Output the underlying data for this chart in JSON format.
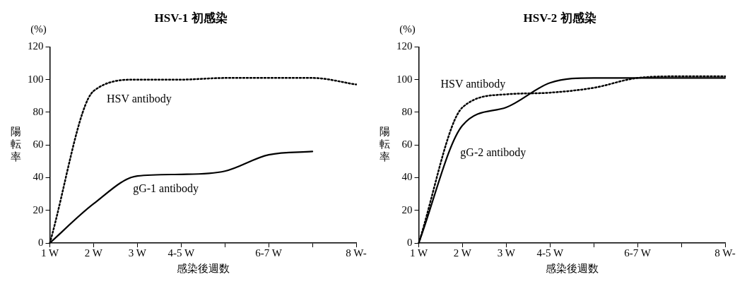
{
  "chart_data": [
    {
      "type": "line",
      "title": "HSV-1 初感染",
      "xlabel": "感染後週数",
      "ylabel": "陽転率",
      "annotations": [
        "(%)"
      ],
      "categories": [
        "1 W",
        "2 W",
        "3 W",
        "4-5 W",
        null,
        "6-7 W",
        null,
        "8 W-"
      ],
      "ylim": [
        0,
        120
      ],
      "yticks": [
        0,
        20,
        40,
        60,
        80,
        100,
        120
      ],
      "grid": false,
      "legend": false,
      "marker": "none",
      "series": [
        {
          "name": "HSV antibody",
          "color": "#000000",
          "line_style": "dotted",
          "values": [
            0,
            93,
            100,
            100,
            101,
            101,
            101,
            97
          ]
        },
        {
          "name": "gG-1 antibody",
          "color": "#000000",
          "line_style": "solid",
          "values": [
            0,
            24,
            41,
            42,
            44,
            54,
            56,
            null
          ]
        }
      ]
    },
    {
      "type": "line",
      "title": "HSV-2 初感染",
      "xlabel": "感染後週数",
      "ylabel": "陽転率",
      "annotations": [
        "(%)"
      ],
      "categories": [
        "1 W",
        "2 W",
        "3 W",
        "4-5 W",
        null,
        "6-7 W",
        null,
        "8 W-"
      ],
      "ylim": [
        0,
        120
      ],
      "yticks": [
        0,
        20,
        40,
        60,
        80,
        100,
        120
      ],
      "grid": false,
      "legend": false,
      "marker": "none",
      "series": [
        {
          "name": "HSV antibody",
          "color": "#000000",
          "line_style": "dotted",
          "values": [
            0,
            83,
            91,
            92,
            95,
            101,
            102,
            102
          ]
        },
        {
          "name": "gG-2 antibody",
          "color": "#000000",
          "line_style": "solid",
          "values": [
            0,
            72,
            83,
            98,
            101,
            101,
            101,
            101
          ]
        }
      ]
    }
  ]
}
